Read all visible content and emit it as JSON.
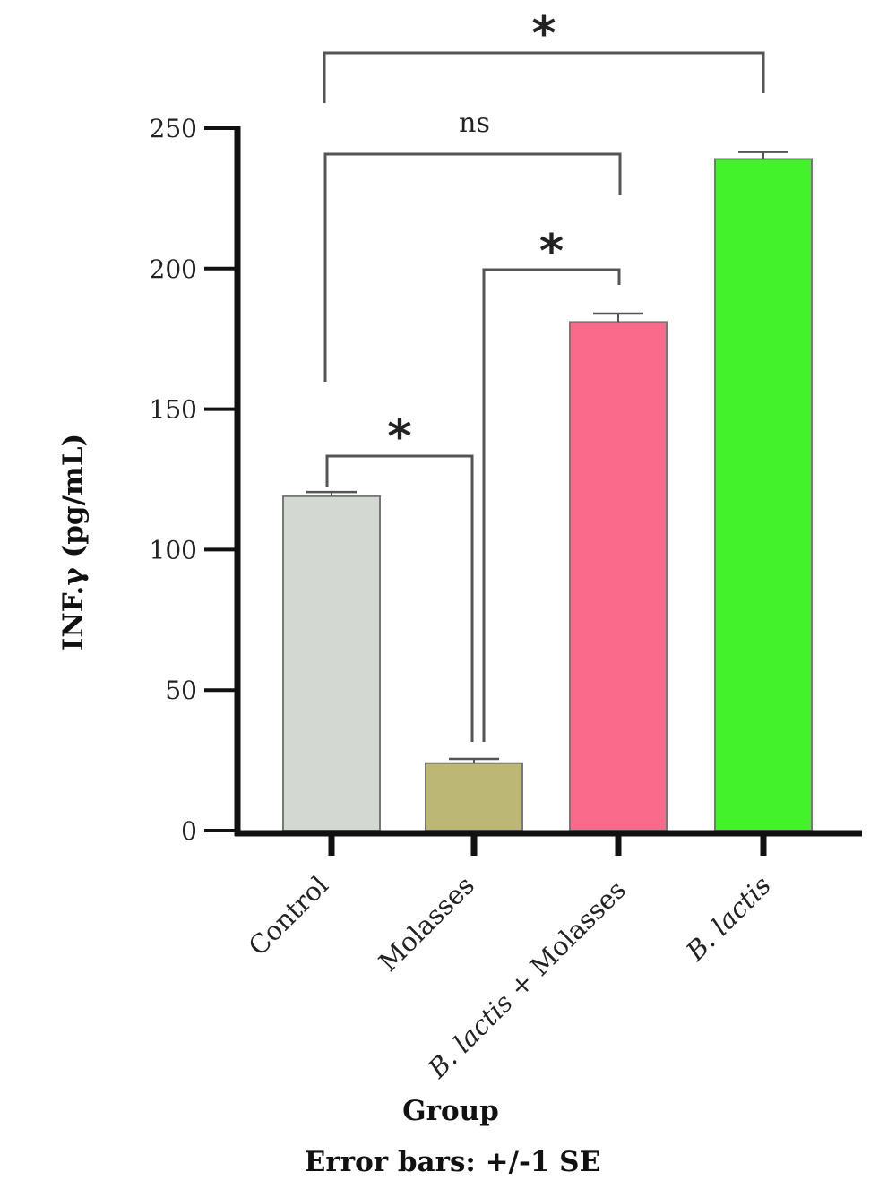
{
  "chart_data": {
    "type": "bar",
    "categories": [
      "Control",
      "Molasses",
      "B. lactis + Molasses",
      "B. lactis"
    ],
    "values": [
      119,
      24,
      181,
      239
    ],
    "errors": [
      1.5,
      1.5,
      3,
      2.5
    ],
    "colors": [
      "#d3d8d3",
      "#bcb774",
      "#fa6b8b",
      "#44f22b"
    ],
    "title": "",
    "xlabel": "Group",
    "ylabel": "INF.γ (pg/mL)",
    "footnote": "Error bars: +/-1 SE",
    "ylim": [
      0,
      250
    ],
    "yticks": [
      0,
      50,
      100,
      150,
      200,
      250
    ],
    "grid": false,
    "comparisons": [
      {
        "from": 0,
        "to": 1,
        "label": "*"
      },
      {
        "from": 1,
        "to": 2,
        "label": "*"
      },
      {
        "from": 0,
        "to": 2,
        "label": "ns"
      },
      {
        "from": 0,
        "to": 3,
        "label": "*"
      }
    ]
  }
}
